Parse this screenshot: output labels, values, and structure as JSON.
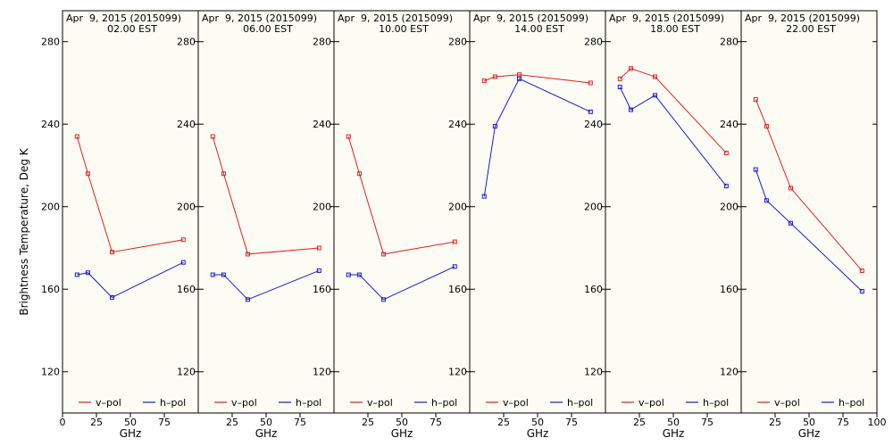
{
  "colors": {
    "background": "#ffffff",
    "panel_background": "#fcfcf4",
    "frame": "#000000",
    "v_pol": "#e02020",
    "h_pol": "#1a1acc"
  },
  "chart_data": {
    "type": "line",
    "ylabel": "Brightness Temperature, Deg K",
    "xlabel": "GHz",
    "ylim": [
      100,
      295
    ],
    "xlim": [
      0,
      100
    ],
    "yticks": [
      120,
      160,
      200,
      240,
      280
    ],
    "xticks_first": [
      0,
      25,
      50,
      75
    ],
    "xticks": [
      25,
      50,
      75
    ],
    "xticks_last": [
      25,
      50,
      75,
      100
    ],
    "legend_position": "bottom",
    "legend": [
      {
        "label": "v–pol",
        "color_key": "v_pol"
      },
      {
        "label": "h–pol",
        "color_key": "h_pol"
      }
    ],
    "panels": [
      {
        "title": "Apr  9, 2015 (2015099)",
        "subtitle": "02.00 EST",
        "series": [
          {
            "name": "v–pol",
            "x": [
              10.7,
              18.7,
              36.5,
              89.0
            ],
            "y": [
              234,
              216,
              178,
              184
            ]
          },
          {
            "name": "h–pol",
            "x": [
              10.7,
              18.7,
              36.5,
              89.0
            ],
            "y": [
              167,
              168,
              156,
              173
            ]
          }
        ]
      },
      {
        "title": "Apr  9, 2015 (2015099)",
        "subtitle": "06.00 EST",
        "series": [
          {
            "name": "v–pol",
            "x": [
              10.7,
              18.7,
              36.5,
              89.0
            ],
            "y": [
              234,
              216,
              177,
              180
            ]
          },
          {
            "name": "h–pol",
            "x": [
              10.7,
              18.7,
              36.5,
              89.0
            ],
            "y": [
              167,
              167,
              155,
              169
            ]
          }
        ]
      },
      {
        "title": "Apr  9, 2015 (2015099)",
        "subtitle": "10.00 EST",
        "series": [
          {
            "name": "v–pol",
            "x": [
              10.7,
              18.7,
              36.5,
              89.0
            ],
            "y": [
              234,
              216,
              177,
              183
            ]
          },
          {
            "name": "h–pol",
            "x": [
              10.7,
              18.7,
              36.5,
              89.0
            ],
            "y": [
              167,
              167,
              155,
              171
            ]
          }
        ]
      },
      {
        "title": "Apr  9, 2015 (2015099)",
        "subtitle": "14.00 EST",
        "series": [
          {
            "name": "v–pol",
            "x": [
              10.7,
              18.7,
              36.5,
              89.0
            ],
            "y": [
              261,
              263,
              264,
              260
            ]
          },
          {
            "name": "h–pol",
            "x": [
              10.7,
              18.7,
              36.5,
              89.0
            ],
            "y": [
              205,
              239,
              262,
              246
            ]
          }
        ]
      },
      {
        "title": "Apr  9, 2015 (2015099)",
        "subtitle": "18.00 EST",
        "series": [
          {
            "name": "v–pol",
            "x": [
              10.7,
              18.7,
              36.5,
              89.0
            ],
            "y": [
              262,
              267,
              263,
              226
            ]
          },
          {
            "name": "h–pol",
            "x": [
              10.7,
              18.7,
              36.5,
              89.0
            ],
            "y": [
              258,
              247,
              254,
              210
            ]
          }
        ]
      },
      {
        "title": "Apr  9, 2015 (2015099)",
        "subtitle": "22.00 EST",
        "series": [
          {
            "name": "v–pol",
            "x": [
              10.7,
              18.7,
              36.5,
              89.0
            ],
            "y": [
              252,
              239,
              209,
              169
            ]
          },
          {
            "name": "h–pol",
            "x": [
              10.7,
              18.7,
              36.5,
              89.0
            ],
            "y": [
              218,
              203,
              192,
              159
            ]
          }
        ]
      }
    ]
  }
}
